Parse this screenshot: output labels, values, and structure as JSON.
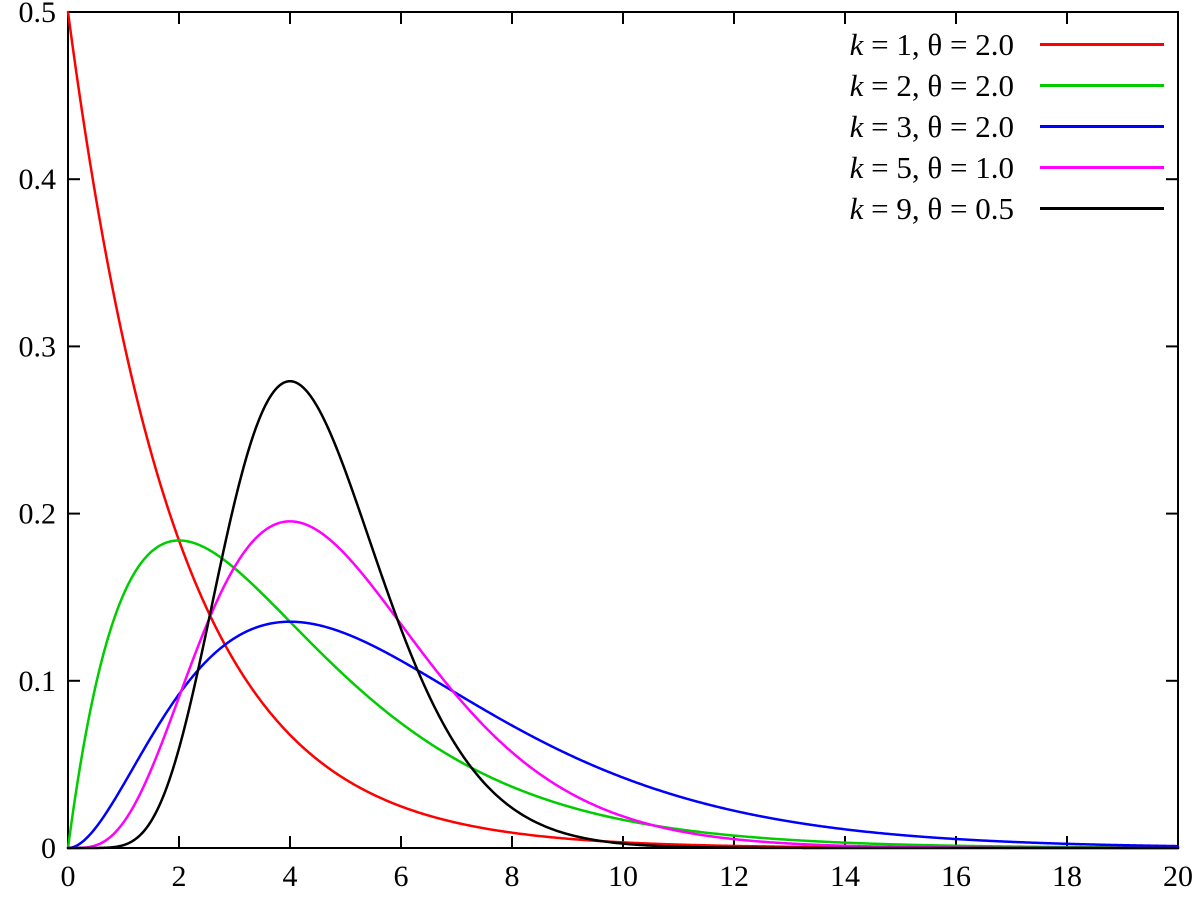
{
  "chart_data": {
    "type": "line",
    "title": "",
    "xlabel": "",
    "ylabel": "",
    "xlim": [
      0,
      20
    ],
    "ylim": [
      0,
      0.5
    ],
    "x_tick_values": [
      0,
      2,
      4,
      6,
      8,
      10,
      12,
      14,
      16,
      18,
      20
    ],
    "x_tick_labels": [
      "0",
      "2",
      "4",
      "6",
      "8",
      "10",
      "12",
      "14",
      "16",
      "18",
      "20"
    ],
    "y_tick_values": [
      0,
      0.1,
      0.2,
      0.3,
      0.4,
      0.5
    ],
    "y_tick_labels": [
      "0",
      "0.1",
      "0.2",
      "0.3",
      "0.4",
      "0.5"
    ],
    "grid": false,
    "legend_position": "top-right",
    "function": "gamma_pdf(x; k, theta) = x^(k-1) * exp(-x/theta) / (Gamma(k) * theta^k)",
    "series": [
      {
        "label": "k = 1, θ = 2.0",
        "k": 1,
        "theta": 2.0,
        "color": "#ff0000",
        "peak": {
          "x": 0,
          "y": 0.5
        }
      },
      {
        "label": "k = 2, θ = 2.0",
        "k": 2,
        "theta": 2.0,
        "color": "#00cc00",
        "peak": {
          "x": 2,
          "y": 0.184
        }
      },
      {
        "label": "k = 3, θ = 2.0",
        "k": 3,
        "theta": 2.0,
        "color": "#0000ff",
        "peak": {
          "x": 4,
          "y": 0.135
        }
      },
      {
        "label": "k = 5, θ = 1.0",
        "k": 5,
        "theta": 1.0,
        "color": "#ff00ff",
        "peak": {
          "x": 4,
          "y": 0.195
        }
      },
      {
        "label": "k = 9, θ = 0.5",
        "k": 9,
        "theta": 0.5,
        "color": "#000000",
        "peak": {
          "x": 4,
          "y": 0.279
        }
      }
    ]
  }
}
